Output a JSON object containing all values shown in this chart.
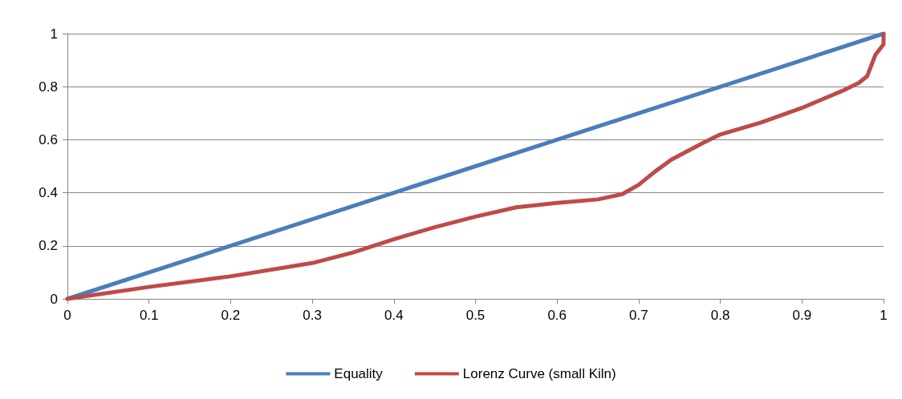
{
  "chart_data": {
    "type": "line",
    "xlim": [
      0,
      1
    ],
    "xticks": [
      0,
      0.1,
      0.2,
      0.3,
      0.4,
      0.5,
      0.6,
      0.7,
      0.8,
      0.9,
      1
    ],
    "ylim": [
      0,
      1
    ],
    "yticks": [
      0,
      0.2,
      0.4,
      0.6,
      0.8,
      1
    ],
    "grid": "y",
    "legend": "bottom",
    "marker": "none",
    "line_style": "solid",
    "series": [
      {
        "name": "Equality",
        "color": "#4a7ebb",
        "x": [
          0,
          1
        ],
        "values": [
          0,
          1
        ]
      },
      {
        "name": "Lorenz Curve (small Kiln)",
        "color": "#be4b48",
        "x": [
          0,
          0.1,
          0.2,
          0.3,
          0.35,
          0.4,
          0.45,
          0.5,
          0.55,
          0.6,
          0.65,
          0.68,
          0.7,
          0.72,
          0.74,
          0.78,
          0.8,
          0.85,
          0.9,
          0.95,
          0.97,
          0.98,
          0.99,
          1,
          1
        ],
        "values": [
          0,
          0.045,
          0.085,
          0.135,
          0.175,
          0.225,
          0.27,
          0.31,
          0.345,
          0.362,
          0.375,
          0.395,
          0.43,
          0.48,
          0.525,
          0.59,
          0.62,
          0.665,
          0.72,
          0.785,
          0.815,
          0.84,
          0.92,
          0.96,
          1
        ]
      }
    ]
  }
}
